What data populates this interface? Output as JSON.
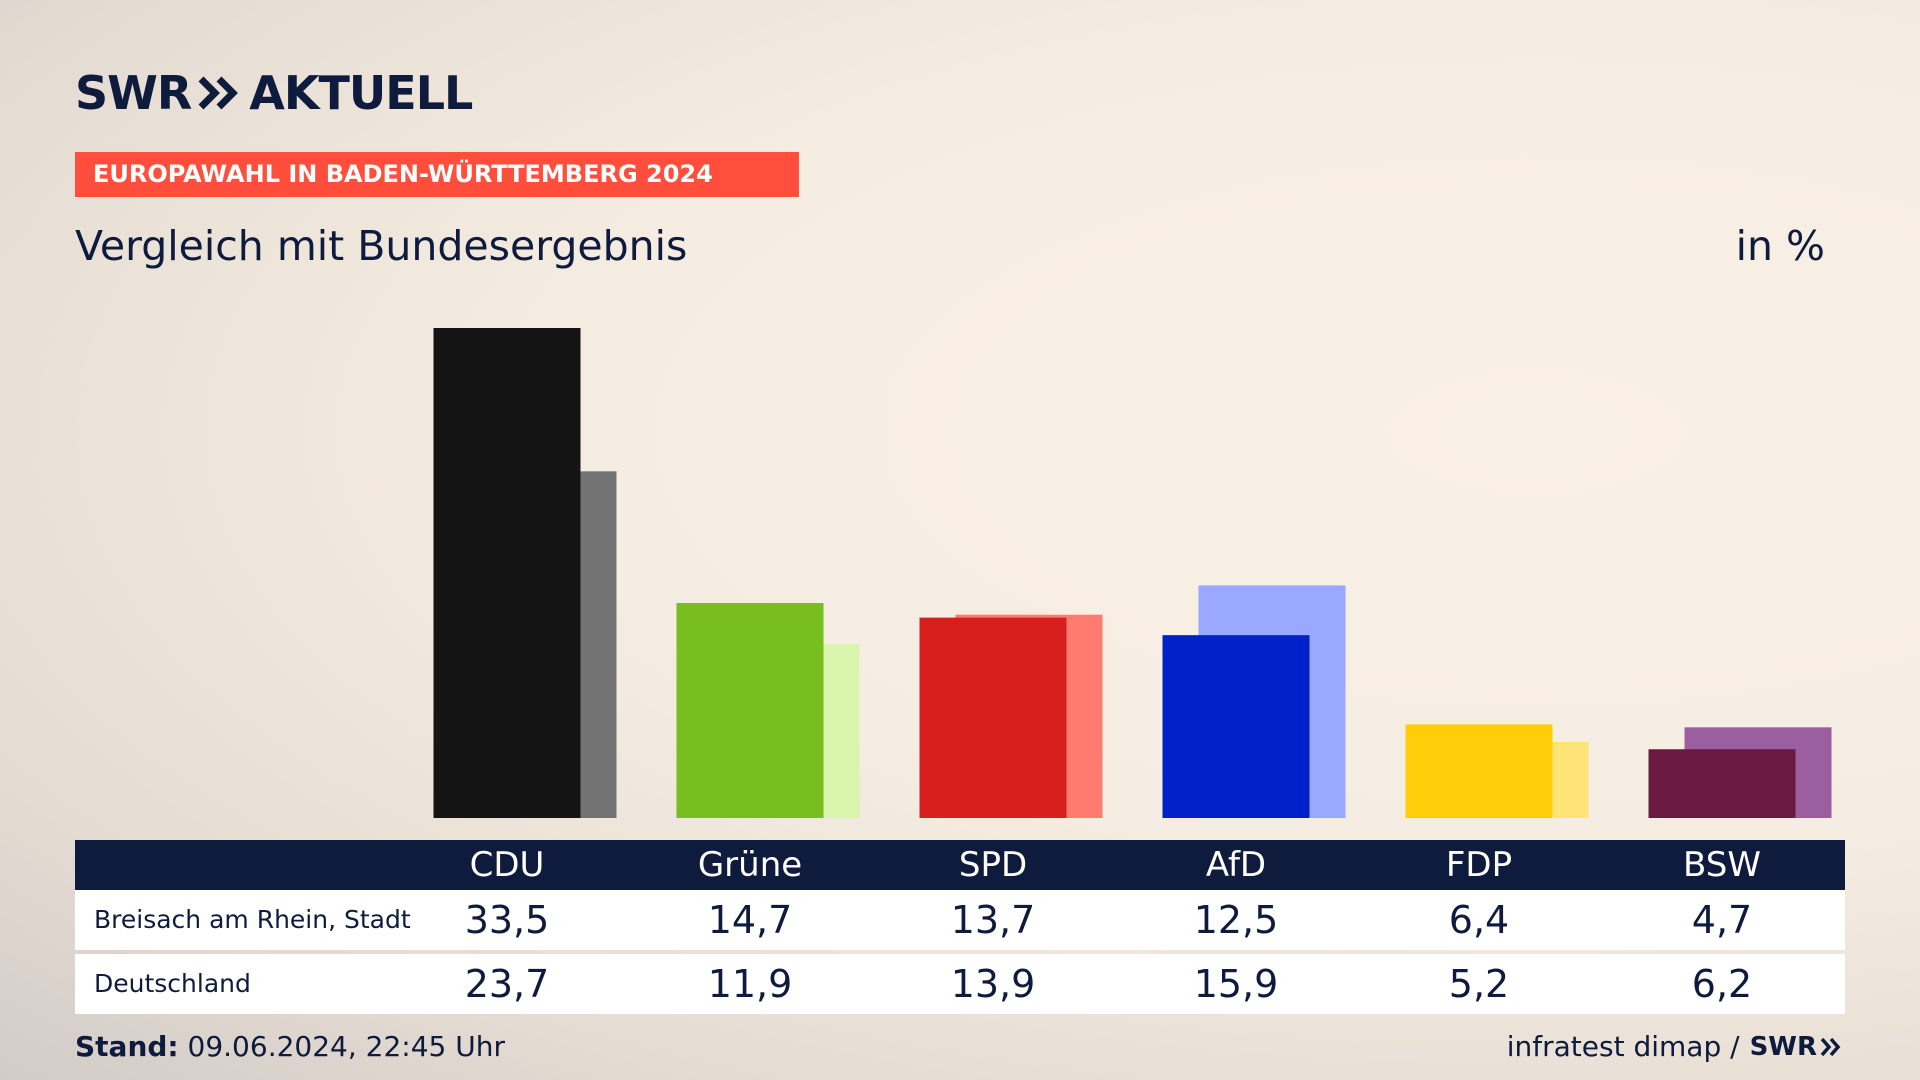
{
  "header": {
    "logo_left": "SWR",
    "logo_right": "AKTUELL",
    "banner": "EUROPAWAHL IN BADEN-WÜRTTEMBERG 2024",
    "subtitle": "Vergleich mit Bundesergebnis",
    "unit": "in %"
  },
  "chart_data": {
    "type": "bar",
    "title": "Vergleich mit Bundesergebnis",
    "unit": "in %",
    "categories": [
      "CDU",
      "Grüne",
      "SPD",
      "AfD",
      "FDP",
      "BSW"
    ],
    "series": [
      {
        "name": "Breisach am Rhein, Stadt",
        "values": [
          33.5,
          14.7,
          13.7,
          12.5,
          6.4,
          4.7
        ],
        "colors": [
          "#141414",
          "#78be1e",
          "#d7201e",
          "#0021c8",
          "#ffcd0a",
          "#6a1a40"
        ]
      },
      {
        "name": "Deutschland",
        "values": [
          23.7,
          11.9,
          13.9,
          15.9,
          5.2,
          6.2
        ],
        "colors": [
          "#737373",
          "#d9f5ac",
          "#ff7a70",
          "#9aa8ff",
          "#ffe377",
          "#9b5fa0"
        ]
      }
    ],
    "ylim": [
      0,
      33.5
    ]
  },
  "footer": {
    "stand_label": "Stand:",
    "stand_value": "09.06.2024, 22:45 Uhr",
    "source": "infratest dimap /",
    "source_brand": "SWR"
  }
}
